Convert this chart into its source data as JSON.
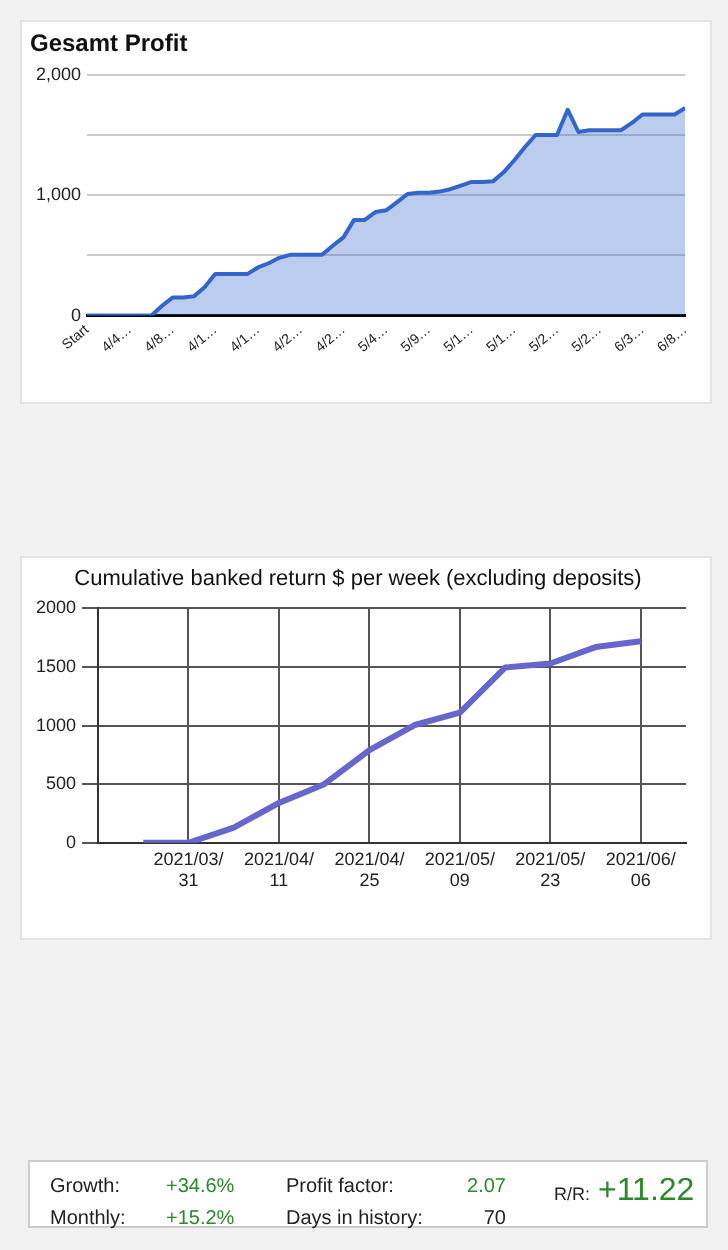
{
  "chart_data": [
    {
      "type": "area",
      "title": "Gesamt Profit",
      "categories": [
        "Start",
        null,
        null,
        null,
        "4/4…",
        null,
        null,
        null,
        "4/8…",
        null,
        null,
        null,
        "4/1…",
        null,
        null,
        null,
        "4/1…",
        null,
        null,
        null,
        "4/2…",
        null,
        null,
        null,
        "4/2…",
        null,
        null,
        null,
        "5/4…",
        null,
        null,
        null,
        "5/9…",
        null,
        null,
        null,
        "5/1…",
        null,
        null,
        null,
        "5/1…",
        null,
        null,
        null,
        "5/2…",
        null,
        null,
        null,
        "5/2…",
        null,
        null,
        null,
        "6/3…",
        null,
        null,
        null,
        "6/8…"
      ],
      "series": [
        {
          "color": "#3366cc",
          "values": [
            0,
            0,
            0,
            0,
            0,
            0,
            0,
            80,
            150,
            150,
            160,
            235,
            345,
            345,
            345,
            345,
            400,
            435,
            480,
            505,
            505,
            505,
            505,
            580,
            650,
            795,
            795,
            860,
            875,
            940,
            1010,
            1020,
            1020,
            1030,
            1050,
            1080,
            1110,
            1110,
            1115,
            1190,
            1290,
            1400,
            1500,
            1500,
            1500,
            1710,
            1525,
            1540,
            1540,
            1540,
            1540,
            1600,
            1670,
            1670,
            1670,
            1670,
            1725
          ]
        }
      ],
      "ylim": [
        0,
        2000
      ],
      "yticks": [
        0,
        {
          "value": 500,
          "label": null
        },
        {
          "value": 1000,
          "label": "1,000"
        },
        {
          "value": 1500,
          "label": null
        },
        {
          "value": 2000,
          "label": "2,000"
        }
      ],
      "grid": "y",
      "marker": "none"
    },
    {
      "type": "line",
      "title": "Cumulative banked return $ per week (excluding deposits)",
      "categories": [
        null,
        "2021/03/31",
        null,
        "2021/04/11",
        null,
        "2021/04/25",
        null,
        "2021/05/09",
        null,
        "2021/05/23",
        null,
        "2021/06/06"
      ],
      "series": [
        {
          "color": "#6666cc",
          "values": [
            0,
            0,
            130,
            340,
            500,
            790,
            1005,
            1110,
            1495,
            1530,
            1670,
            1720
          ]
        }
      ],
      "ylim": [
        0,
        2000
      ],
      "yticks": [
        0,
        500,
        1000,
        1500,
        2000
      ],
      "grid": true,
      "marker": "none"
    },
    {
      "type": "other",
      "annotations": [
        "Growth:",
        "+34.6%",
        "Monthly:",
        "+15.2%",
        "Profit factor:",
        "2.07",
        "Days in history:",
        "70",
        "R/R:",
        "+11.22"
      ]
    }
  ]
}
